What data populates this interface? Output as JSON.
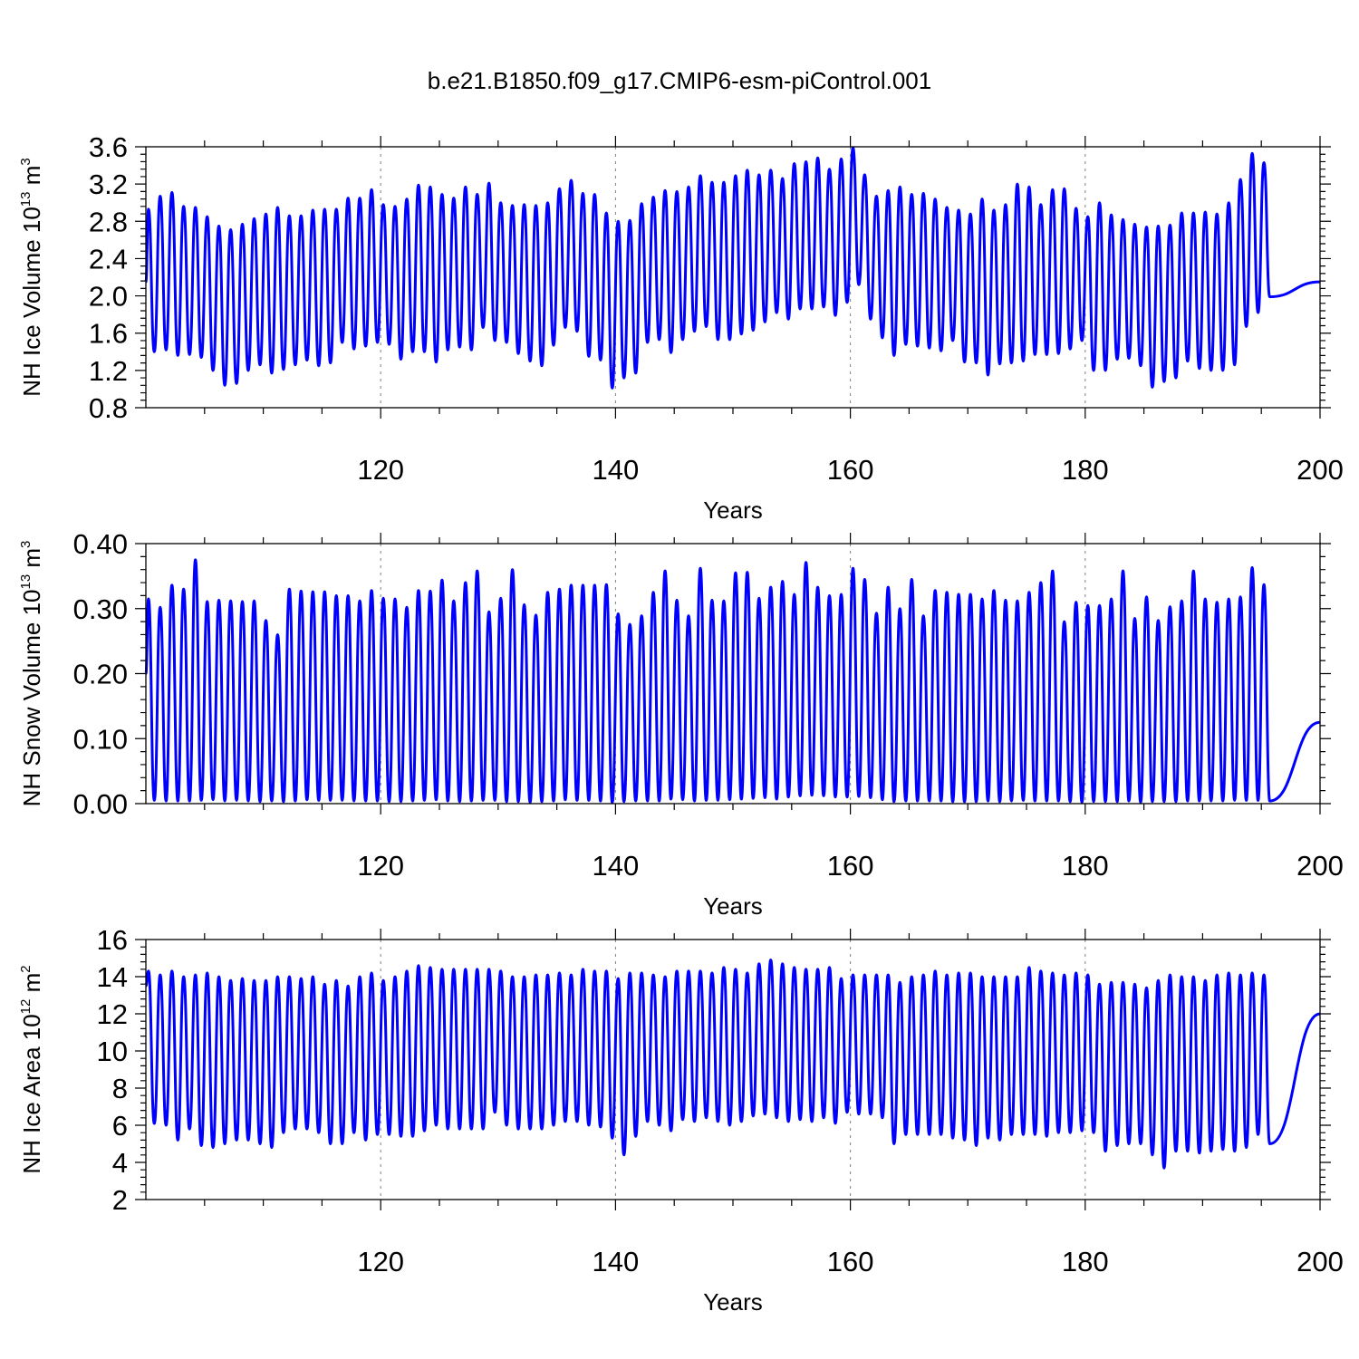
{
  "title": "b.e21.B1850.f09_g17.CMIP6-esm-piControl.001",
  "line_color": "#0000ff",
  "chart_data": [
    {
      "type": "line",
      "ylabel": "NH Ice Volume 10",
      "ylabel_exp": "13",
      "ylabel_unit": " m",
      "ylabel_unit_exp": "3",
      "xlabel": "Years",
      "xlim": [
        100,
        200
      ],
      "ylim": [
        0.8,
        3.6
      ],
      "yticks": [
        0.8,
        1.2,
        1.6,
        2.0,
        2.4,
        2.8,
        3.2,
        3.6
      ],
      "ytick_labels": [
        "0.8",
        "1.2",
        "1.6",
        "2.0",
        "2.4",
        "2.8",
        "3.2",
        "3.6"
      ],
      "xticks": [
        120,
        140,
        160,
        180,
        200
      ],
      "xtick_labels": [
        "120",
        "140",
        "160",
        "180",
        "200"
      ],
      "grid": "vertical dotted at major x ticks",
      "series": [
        {
          "start_year": 101,
          "cycle_years": 1,
          "maxima": [
            2.93,
            3.07,
            3.11,
            2.96,
            2.95,
            2.85,
            2.75,
            2.71,
            2.77,
            2.83,
            2.88,
            2.95,
            2.86,
            2.86,
            2.92,
            2.93,
            2.93,
            3.05,
            3.05,
            3.14,
            2.98,
            2.96,
            3.04,
            3.19,
            3.17,
            3.09,
            3.05,
            3.17,
            3.09,
            3.21,
            3.0,
            2.97,
            2.98,
            2.97,
            3.0,
            3.15,
            3.24,
            3.1,
            3.09,
            2.89,
            2.8,
            2.81,
            2.99,
            3.06,
            3.13,
            3.12,
            3.17,
            3.29,
            3.22,
            3.22,
            3.29,
            3.35,
            3.3,
            3.35,
            3.26,
            3.42,
            3.44,
            3.48,
            3.36,
            3.47,
            3.59,
            3.3,
            3.07,
            3.13,
            3.17,
            3.09,
            3.1,
            3.04,
            2.95,
            2.92,
            2.88,
            3.04,
            2.92,
            2.98,
            3.2,
            3.17,
            2.98,
            3.14,
            3.15,
            2.94,
            2.85,
            3.0,
            2.87,
            2.82,
            2.77,
            2.74,
            2.75,
            2.76,
            2.89,
            2.89,
            2.9,
            2.88,
            3.0,
            3.25,
            3.53,
            3.43
          ],
          "minima": [
            1.4,
            1.42,
            1.36,
            1.37,
            1.34,
            1.2,
            1.04,
            1.06,
            1.2,
            1.26,
            1.17,
            1.21,
            1.26,
            1.31,
            1.25,
            1.28,
            1.5,
            1.43,
            1.46,
            1.5,
            1.48,
            1.32,
            1.4,
            1.4,
            1.29,
            1.42,
            1.45,
            1.42,
            1.66,
            1.52,
            1.5,
            1.38,
            1.3,
            1.25,
            1.47,
            1.66,
            1.62,
            1.35,
            1.31,
            1.01,
            1.12,
            1.17,
            1.5,
            1.53,
            1.39,
            1.53,
            1.62,
            1.67,
            1.53,
            1.53,
            1.59,
            1.63,
            1.72,
            1.82,
            1.75,
            1.86,
            1.86,
            1.88,
            1.79,
            1.93,
            2.12,
            1.75,
            1.55,
            1.36,
            1.48,
            1.46,
            1.44,
            1.41,
            1.52,
            1.29,
            1.28,
            1.15,
            1.27,
            1.28,
            1.3,
            1.37,
            1.37,
            1.38,
            1.43,
            1.52,
            1.2,
            1.2,
            1.32,
            1.33,
            1.25,
            1.02,
            1.08,
            1.12,
            1.3,
            1.22,
            1.2,
            1.2,
            1.26,
            1.67,
            1.82,
            1.99
          ],
          "first_value": 2.15,
          "last_value": 2.15
        }
      ]
    },
    {
      "type": "line",
      "ylabel": "NH Snow Volume 10",
      "ylabel_exp": "13",
      "ylabel_unit": " m",
      "ylabel_unit_exp": "3",
      "xlabel": "Years",
      "xlim": [
        100,
        200
      ],
      "ylim": [
        0.0,
        0.4
      ],
      "yticks": [
        0.0,
        0.1,
        0.2,
        0.3,
        0.4
      ],
      "ytick_labels": [
        "0.00",
        "0.10",
        "0.20",
        "0.30",
        "0.40"
      ],
      "xticks": [
        120,
        140,
        160,
        180,
        200
      ],
      "xtick_labels": [
        "120",
        "140",
        "160",
        "180",
        "200"
      ],
      "grid": "vertical dotted at major x ticks",
      "series": [
        {
          "start_year": 101,
          "cycle_years": 1,
          "maxima": [
            0.315,
            0.302,
            0.336,
            0.33,
            0.375,
            0.311,
            0.313,
            0.312,
            0.311,
            0.312,
            0.282,
            0.26,
            0.33,
            0.327,
            0.326,
            0.326,
            0.32,
            0.32,
            0.312,
            0.328,
            0.316,
            0.315,
            0.302,
            0.328,
            0.327,
            0.344,
            0.312,
            0.34,
            0.358,
            0.295,
            0.316,
            0.36,
            0.306,
            0.29,
            0.325,
            0.33,
            0.336,
            0.336,
            0.336,
            0.337,
            0.292,
            0.276,
            0.289,
            0.325,
            0.358,
            0.313,
            0.289,
            0.362,
            0.313,
            0.312,
            0.355,
            0.356,
            0.316,
            0.333,
            0.342,
            0.322,
            0.371,
            0.333,
            0.32,
            0.322,
            0.362,
            0.345,
            0.293,
            0.333,
            0.3,
            0.345,
            0.289,
            0.328,
            0.325,
            0.322,
            0.322,
            0.315,
            0.328,
            0.313,
            0.312,
            0.325,
            0.34,
            0.358,
            0.28,
            0.31,
            0.305,
            0.305,
            0.315,
            0.358,
            0.285,
            0.318,
            0.282,
            0.303,
            0.312,
            0.358,
            0.315,
            0.31,
            0.315,
            0.318,
            0.363,
            0.337
          ],
          "minima": [
            0.005,
            0.004,
            0.004,
            0.004,
            0.005,
            0.006,
            0.004,
            0.005,
            0.004,
            0.003,
            0.004,
            0.003,
            0.004,
            0.006,
            0.005,
            0.005,
            0.005,
            0.004,
            0.004,
            0.004,
            0.003,
            0.003,
            0.004,
            0.005,
            0.006,
            0.004,
            0.003,
            0.004,
            0.005,
            0.005,
            0.003,
            0.003,
            0.002,
            0.003,
            0.004,
            0.006,
            0.005,
            0.005,
            0.004,
            0.002,
            0.003,
            0.004,
            0.004,
            0.004,
            0.007,
            0.006,
            0.004,
            0.005,
            0.005,
            0.006,
            0.007,
            0.008,
            0.009,
            0.007,
            0.01,
            0.012,
            0.013,
            0.012,
            0.01,
            0.01,
            0.011,
            0.009,
            0.006,
            0.003,
            0.004,
            0.004,
            0.004,
            0.004,
            0.003,
            0.003,
            0.003,
            0.004,
            0.003,
            0.004,
            0.005,
            0.004,
            0.004,
            0.004,
            0.003,
            0.002,
            0.003,
            0.003,
            0.003,
            0.004,
            0.002,
            0.003,
            0.003,
            0.003,
            0.004,
            0.004,
            0.004,
            0.004,
            0.005,
            0.005,
            0.005,
            0.004
          ],
          "first_value": 0.2,
          "last_value": 0.125
        }
      ]
    },
    {
      "type": "line",
      "ylabel": "NH Ice Area 10",
      "ylabel_exp": "12",
      "ylabel_unit": " m",
      "ylabel_unit_exp": "2",
      "xlabel": "Years",
      "xlim": [
        100,
        200
      ],
      "ylim": [
        2,
        16
      ],
      "yticks": [
        2,
        4,
        6,
        8,
        10,
        12,
        14,
        16
      ],
      "ytick_labels": [
        "2",
        "4",
        "6",
        "8",
        "10",
        "12",
        "14",
        "16"
      ],
      "xticks": [
        120,
        140,
        160,
        180,
        200
      ],
      "xtick_labels": [
        "120",
        "140",
        "160",
        "180",
        "200"
      ],
      "grid": "vertical dotted at major x ticks",
      "series": [
        {
          "start_year": 101,
          "cycle_years": 1,
          "maxima": [
            14.3,
            14.1,
            14.3,
            14.0,
            14.1,
            14.2,
            14.0,
            13.8,
            13.9,
            13.8,
            13.8,
            14.0,
            14.0,
            13.9,
            14.0,
            13.6,
            13.8,
            13.5,
            14.0,
            14.2,
            13.8,
            14.0,
            14.3,
            14.6,
            14.5,
            14.4,
            14.4,
            14.4,
            14.4,
            14.4,
            14.3,
            14.0,
            14.0,
            14.1,
            14.1,
            14.2,
            14.1,
            14.4,
            14.3,
            14.3,
            13.9,
            14.2,
            14.2,
            14.1,
            14.0,
            14.3,
            14.3,
            14.3,
            14.2,
            14.5,
            14.4,
            14.2,
            14.7,
            14.9,
            14.7,
            14.5,
            14.4,
            14.4,
            14.5,
            13.9,
            14.1,
            14.1,
            14.1,
            14.1,
            13.7,
            14.0,
            14.1,
            14.3,
            14.1,
            14.2,
            14.2,
            14.0,
            14.0,
            14.0,
            14.0,
            14.5,
            14.3,
            14.2,
            14.1,
            14.2,
            14.1,
            13.6,
            13.7,
            13.7,
            13.6,
            13.4,
            13.8,
            14.1,
            14.0,
            14.0,
            13.8,
            14.1,
            14.2,
            14.1,
            14.2,
            14.1
          ],
          "minima": [
            6.1,
            6.0,
            5.2,
            5.8,
            4.9,
            4.8,
            5.0,
            5.2,
            5.2,
            5.0,
            4.8,
            5.6,
            5.8,
            5.8,
            5.6,
            5.0,
            5.0,
            5.6,
            5.2,
            5.5,
            5.5,
            5.4,
            5.4,
            5.7,
            6.0,
            5.8,
            5.8,
            5.8,
            5.8,
            6.7,
            6.0,
            5.8,
            5.8,
            5.8,
            6.0,
            6.2,
            6.2,
            6.0,
            5.9,
            5.3,
            4.4,
            5.4,
            6.2,
            6.0,
            5.7,
            6.3,
            6.2,
            6.4,
            6.2,
            6.0,
            6.2,
            6.5,
            6.6,
            6.4,
            6.2,
            6.3,
            6.2,
            6.4,
            6.1,
            6.7,
            6.6,
            6.6,
            6.4,
            5.0,
            5.5,
            5.5,
            5.5,
            5.5,
            5.3,
            5.2,
            4.9,
            5.3,
            5.2,
            5.5,
            5.5,
            5.5,
            5.4,
            5.6,
            5.6,
            5.7,
            5.6,
            4.6,
            4.9,
            5.0,
            5.0,
            4.4,
            3.7,
            4.6,
            4.6,
            4.5,
            4.6,
            4.7,
            4.6,
            4.8,
            5.5,
            5.0
          ],
          "first_value": 13.5,
          "last_value": 12.0
        }
      ]
    }
  ]
}
